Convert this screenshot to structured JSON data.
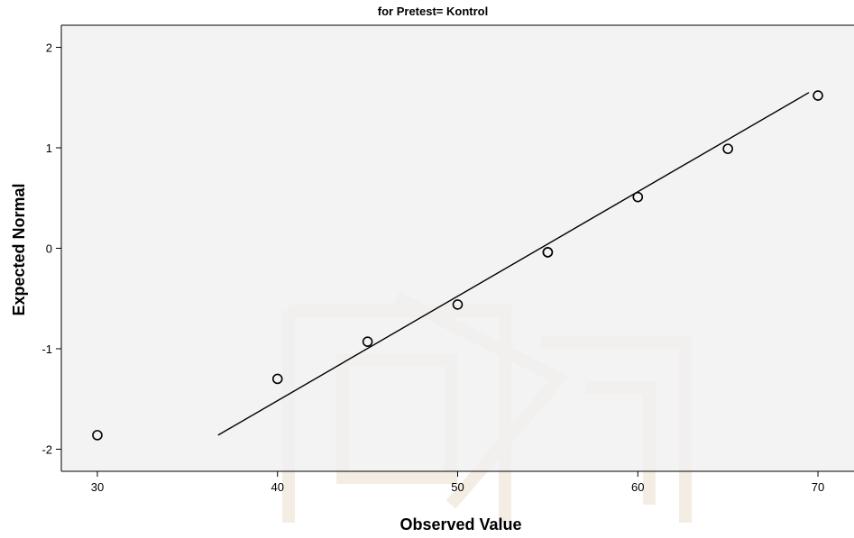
{
  "chart_data": {
    "type": "scatter",
    "title": "for Pretest= Kontrol",
    "xlabel": "Observed Value",
    "ylabel": "Expected Normal",
    "xlim": [
      28,
      72
    ],
    "ylim": [
      -2.22,
      2.22
    ],
    "xticks": [
      30,
      40,
      50,
      60,
      70
    ],
    "yticks": [
      2,
      1,
      0,
      -1,
      -2
    ],
    "grid": false,
    "points": [
      {
        "x": 30,
        "y": -1.86
      },
      {
        "x": 40,
        "y": -1.3
      },
      {
        "x": 45,
        "y": -0.93
      },
      {
        "x": 50,
        "y": -0.56
      },
      {
        "x": 55,
        "y": -0.04
      },
      {
        "x": 55,
        "y": -0.04
      },
      {
        "x": 60,
        "y": 0.51
      },
      {
        "x": 65,
        "y": 0.99
      },
      {
        "x": 70,
        "y": 1.52
      }
    ],
    "reference_line": {
      "x1": 36.7,
      "y1": -1.86,
      "x2": 69.5,
      "y2": 1.55
    },
    "colors": {
      "plot_bg": "#f0f0f0",
      "marker": "#000000",
      "line": "#000000"
    }
  }
}
